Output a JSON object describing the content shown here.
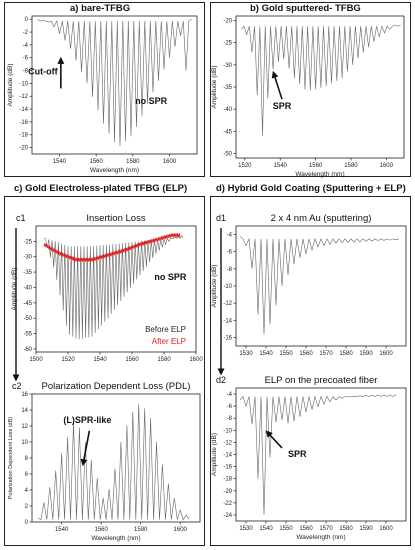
{
  "panels": {
    "a": {
      "title": "a) bare-TFBG"
    },
    "b": {
      "title": "b) Gold sputtered- TFBG"
    },
    "c": {
      "title": "c) Gold Electroless-plated TFBG (ELP)"
    },
    "d": {
      "title": "d) Hybrid Gold Coating (Sputtering + ELP)"
    }
  },
  "colors": {
    "trace": "#555555",
    "red_trace": "#e02020",
    "frame": "#222222"
  },
  "chart_data": [
    {
      "id": "a",
      "type": "line",
      "xlabel": "Wavelength (nm)",
      "ylabel": "Amplitude (dB)",
      "xlim": [
        1525,
        1615
      ],
      "ylim": [
        -21,
        0.5
      ],
      "xticks": [
        1540,
        1560,
        1580,
        1600
      ],
      "yticks": [
        0,
        -2,
        -4,
        -6,
        -8,
        -10,
        -12,
        -14,
        -16,
        -18,
        -20
      ],
      "annotations": [
        {
          "text": "Cut-off",
          "x": 1532,
          "y": -8.6
        },
        {
          "text": "no SPR",
          "x": 1590,
          "y": -13.2
        }
      ],
      "series": [
        {
          "envelope": [
            [
              1528,
              0
            ],
            [
              1535,
              -0.5
            ],
            [
              1545,
              -4
            ],
            [
              1555,
              -10
            ],
            [
              1565,
              -17
            ],
            [
              1572,
              -20
            ],
            [
              1580,
              -18
            ],
            [
              1590,
              -12
            ],
            [
              1600,
              -6
            ],
            [
              1607,
              -2
            ],
            [
              1609,
              -8
            ],
            [
              1610,
              0
            ],
            [
              1613,
              0
            ]
          ]
        }
      ]
    },
    {
      "id": "b",
      "type": "line",
      "xlabel": "Wavelength (nm)",
      "ylabel": "Amplitude (dB)",
      "xlim": [
        1515,
        1610
      ],
      "ylim": [
        -51,
        -19
      ],
      "xticks": [
        1520,
        1540,
        1560,
        1580,
        1600
      ],
      "yticks": [
        -20,
        -25,
        -30,
        -35,
        -40,
        -45,
        -50
      ],
      "annotations": [
        {
          "text": "SPR",
          "x": 1541,
          "y": -40
        }
      ],
      "series": [
        {
          "envelope": [
            [
              1518,
              -22
            ],
            [
              1523,
              -24
            ],
            [
              1528,
              -40
            ],
            [
              1531,
              -49
            ],
            [
              1534,
              -32
            ],
            [
              1538,
              -30
            ],
            [
              1541,
              -28
            ],
            [
              1548,
              -33
            ],
            [
              1555,
              -36
            ],
            [
              1565,
              -35
            ],
            [
              1575,
              -33
            ],
            [
              1585,
              -28
            ],
            [
              1595,
              -24
            ],
            [
              1605,
              -21
            ],
            [
              1608,
              -21
            ]
          ]
        }
      ]
    },
    {
      "id": "c1",
      "type": "line",
      "sublabel": "c1",
      "title": "Insertion Loss",
      "xlabel": "",
      "ylabel": "Amplitude (dB)",
      "xlim": [
        1500,
        1600
      ],
      "ylim": [
        -61,
        -20
      ],
      "xticks": [
        1500,
        1520,
        1540,
        1560,
        1580,
        1600
      ],
      "yticks": [
        -25,
        -30,
        -35,
        -40,
        -45,
        -50,
        -55,
        -60
      ],
      "annotations": [
        {
          "text": "no SPR",
          "x": 1574,
          "y": -37.5
        }
      ],
      "legend": [
        "Before ELP",
        "After ELP"
      ],
      "series": [
        {
          "name": "Before ELP",
          "envelope": [
            [
              1505,
              -24
            ],
            [
              1512,
              -35
            ],
            [
              1520,
              -55
            ],
            [
              1526,
              -57
            ],
            [
              1535,
              -56
            ],
            [
              1545,
              -50
            ],
            [
              1555,
              -43
            ],
            [
              1565,
              -36
            ],
            [
              1575,
              -29
            ],
            [
              1585,
              -24
            ],
            [
              1592,
              -23
            ]
          ]
        },
        {
          "name": "After ELP",
          "envelope": [
            [
              1505,
              -26
            ],
            [
              1515,
              -29
            ],
            [
              1525,
              -31
            ],
            [
              1535,
              -31
            ],
            [
              1545,
              -29.5
            ],
            [
              1555,
              -28
            ],
            [
              1565,
              -26
            ],
            [
              1575,
              -24.5
            ],
            [
              1585,
              -23
            ],
            [
              1590,
              -23
            ]
          ]
        }
      ]
    },
    {
      "id": "c2",
      "type": "line",
      "sublabel": "c2",
      "title": "Polarization Dependent Loss (PDL)",
      "xlabel": "Wavelength (nm)",
      "ylabel": "Polarization Dependent Loss (dB)",
      "xlim": [
        1525,
        1610
      ],
      "ylim": [
        0,
        16
      ],
      "xticks": [
        1540,
        1560,
        1580,
        1600
      ],
      "yticks": [
        0,
        2,
        4,
        6,
        8,
        10,
        12,
        14,
        16
      ],
      "annotations": [
        {
          "text": "(L)SPR-like",
          "x": 1553,
          "y": 12.4
        }
      ],
      "series": [
        {
          "envelope": [
            [
              1528,
              0.5
            ],
            [
              1535,
              5
            ],
            [
              1542,
              10
            ],
            [
              1547,
              13
            ],
            [
              1552,
              10
            ],
            [
              1558,
              5.5
            ],
            [
              1561,
              3
            ],
            [
              1565,
              4.5
            ],
            [
              1570,
              10
            ],
            [
              1575,
              13.5
            ],
            [
              1580,
              15
            ],
            [
              1585,
              13
            ],
            [
              1590,
              8
            ],
            [
              1595,
              4
            ],
            [
              1600,
              1.5
            ],
            [
              1605,
              0.5
            ]
          ]
        }
      ]
    },
    {
      "id": "d1",
      "type": "line",
      "sublabel": "d1",
      "title": "2 x 4 nm Au (sputtering)",
      "xlabel": "",
      "ylabel": "Amplitude (dB)",
      "xlim": [
        1525,
        1610
      ],
      "ylim": [
        -17,
        -3
      ],
      "xticks": [
        1530,
        1540,
        1550,
        1560,
        1570,
        1580,
        1590,
        1600
      ],
      "yticks": [
        -4,
        -6,
        -8,
        -10,
        -12,
        -14,
        -16
      ],
      "series": [
        {
          "envelope": [
            [
              1527,
              -4.2
            ],
            [
              1532,
              -6
            ],
            [
              1535,
              -12
            ],
            [
              1538,
              -16
            ],
            [
              1542,
              -14.5
            ],
            [
              1548,
              -10
            ],
            [
              1555,
              -7
            ],
            [
              1565,
              -5.5
            ],
            [
              1575,
              -5
            ],
            [
              1590,
              -4.8
            ],
            [
              1605,
              -4.6
            ],
            [
              1607,
              -5.6
            ]
          ]
        }
      ]
    },
    {
      "id": "d2",
      "type": "line",
      "sublabel": "d2",
      "title": "ELP on the precoated fiber",
      "xlabel": "Wavelength (nm)",
      "ylabel": "Amplitude (dB)",
      "xlim": [
        1525,
        1610
      ],
      "ylim": [
        -25,
        -3
      ],
      "xticks": [
        1530,
        1540,
        1550,
        1560,
        1570,
        1580,
        1590,
        1600
      ],
      "yticks": [
        -4,
        -6,
        -8,
        -10,
        -12,
        -14,
        -16,
        -18,
        -20,
        -22,
        -24
      ],
      "annotations": [
        {
          "text": "SPR",
          "x": 1551,
          "y": -14.4
        }
      ],
      "series": [
        {
          "envelope": [
            [
              1527,
              -5
            ],
            [
              1530,
              -6
            ],
            [
              1534,
              -10
            ],
            [
              1537,
              -22
            ],
            [
              1539,
              -24
            ],
            [
              1541,
              -19
            ],
            [
              1543,
              -10
            ],
            [
              1546,
              -8
            ],
            [
              1552,
              -9
            ],
            [
              1560,
              -7
            ],
            [
              1570,
              -5.5
            ],
            [
              1580,
              -4.5
            ],
            [
              1590,
              -4.2
            ],
            [
              1605,
              -4.1
            ]
          ]
        }
      ]
    }
  ]
}
